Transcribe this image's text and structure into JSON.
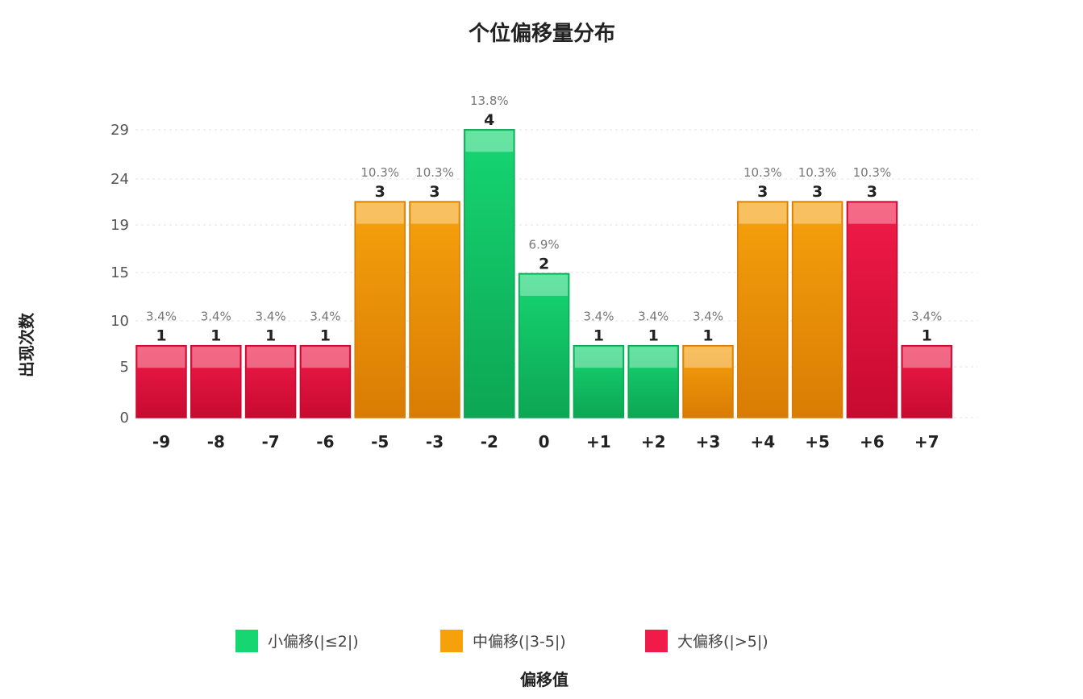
{
  "colors": {
    "small": "#16d672",
    "medium": "#f6a10c",
    "large": "#f01b48",
    "small_dark": "#0da654",
    "medium_dark": "#d97c04",
    "large_dark": "#c80a30"
  },
  "chart_data": {
    "type": "bar",
    "title": "个位偏移量分布",
    "xlabel": "偏移值",
    "ylabel": "出现次数",
    "categories": [
      "-9",
      "-8",
      "-7",
      "-6",
      "-5",
      "-3",
      "-2",
      "0",
      "+1",
      "+2",
      "+3",
      "+4",
      "+5",
      "+6",
      "+7"
    ],
    "values": [
      1,
      1,
      1,
      1,
      3,
      3,
      4,
      2,
      1,
      1,
      1,
      3,
      3,
      3,
      1
    ],
    "percent_labels": [
      "3.4%",
      "3.4%",
      "3.4%",
      "3.4%",
      "10.3%",
      "10.3%",
      "13.8%",
      "6.9%",
      "3.4%",
      "3.4%",
      "3.4%",
      "10.3%",
      "10.3%",
      "10.3%",
      "3.4%"
    ],
    "groups": [
      "large",
      "large",
      "large",
      "large",
      "medium",
      "medium",
      "small",
      "small",
      "small",
      "small",
      "medium",
      "medium",
      "medium",
      "large",
      "large"
    ],
    "y_tick_labels": [
      "0",
      "5",
      "10",
      "15",
      "19",
      "24",
      "29"
    ],
    "legend": [
      {
        "key": "small",
        "label": "小偏移(|≤2|)"
      },
      {
        "key": "medium",
        "label": "中偏移(|3-5|)"
      },
      {
        "key": "large",
        "label": "大偏移(|>5|)"
      }
    ],
    "legend_position": "bottom",
    "grid": true
  }
}
